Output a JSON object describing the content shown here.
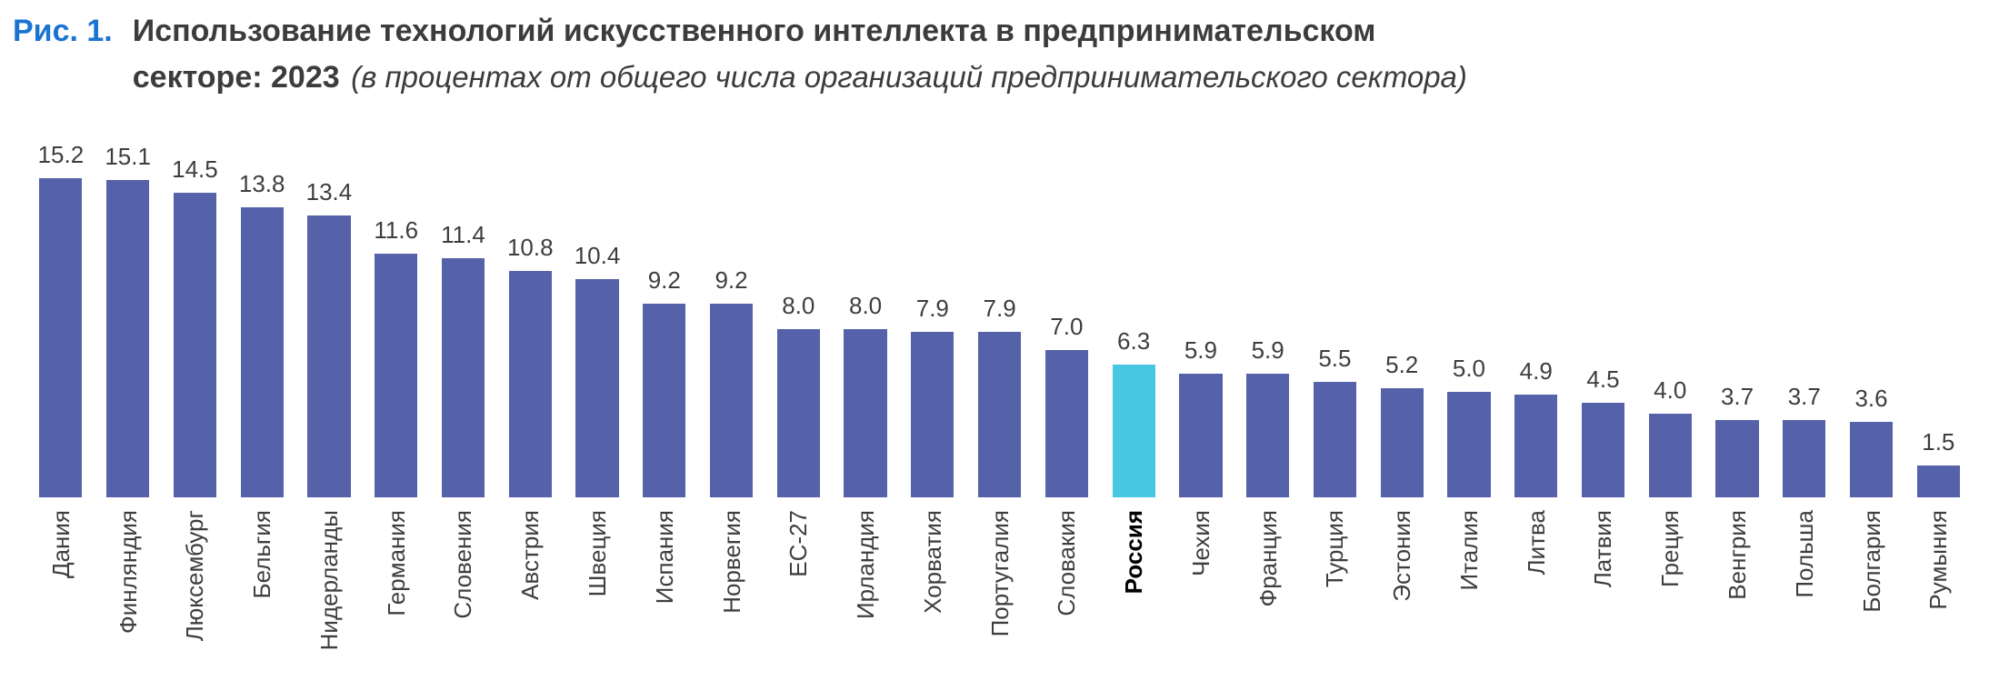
{
  "header": {
    "figure_label": "Рис. 1.",
    "title": "Использование технологий искусственного интеллекта в предпринимательском секторе: 2023",
    "note": "(в процентах от общего числа организаций предпринимательского сектора)"
  },
  "chart_data": {
    "type": "bar",
    "title": "Использование технологий искусственного интеллекта в предпринимательском секторе: 2023",
    "subtitle": "(в процентах от общего числа организаций предпринимательского сектора)",
    "categories": [
      "Дания",
      "Финляндия",
      "Люксембург",
      "Бельгия",
      "Нидерланды",
      "Германия",
      "Словения",
      "Австрия",
      "Швеция",
      "Испания",
      "Норвегия",
      "ЕС-27",
      "Ирландия",
      "Хорватия",
      "Португалия",
      "Словакия",
      "Россия",
      "Чехия",
      "Франция",
      "Турция",
      "Эстония",
      "Италия",
      "Литва",
      "Латвия",
      "Греция",
      "Венгрия",
      "Польша",
      "Болгария",
      "Румыния"
    ],
    "values": [
      15.2,
      15.1,
      14.5,
      13.8,
      13.4,
      11.6,
      11.4,
      10.8,
      10.4,
      9.2,
      9.2,
      8.0,
      8.0,
      7.9,
      7.9,
      7.0,
      6.3,
      5.9,
      5.9,
      5.5,
      5.2,
      5.0,
      4.9,
      4.5,
      4.0,
      3.7,
      3.7,
      3.6,
      1.5
    ],
    "highlight_category": "Россия",
    "value_labels": "one decimal, above each bar",
    "xlabel": "",
    "ylabel": "",
    "ylim": [
      0,
      16
    ],
    "grid": false,
    "legend": false,
    "colors": {
      "bar": "#5561A9",
      "highlight_bar": "#48C7E3",
      "text": "#3E3E3E",
      "figure_label": "#1B74D2"
    }
  }
}
